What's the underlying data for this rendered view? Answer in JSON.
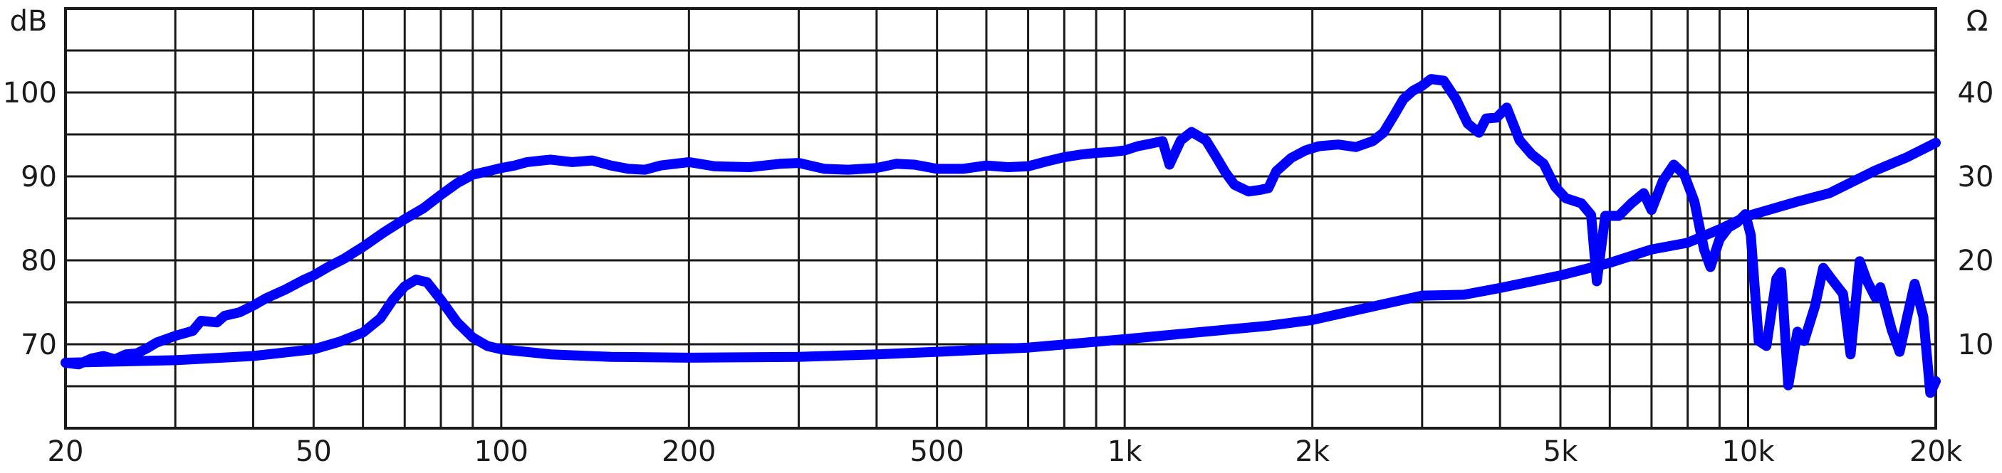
{
  "chart_data": {
    "type": "line",
    "title": "",
    "xlabel": "",
    "ylabel": "dB",
    "y2label": "Ω",
    "x_scale": "log",
    "xlim": [
      20,
      20000
    ],
    "ylim": [
      60,
      110
    ],
    "y2lim": [
      0,
      50
    ],
    "grid": true,
    "legend": "none",
    "line_color": "#0000ff",
    "grid_color": "#1a1a1a",
    "x_ticks": [
      {
        "value": 20,
        "label": "20"
      },
      {
        "value": 50,
        "label": "50"
      },
      {
        "value": 100,
        "label": "100"
      },
      {
        "value": 200,
        "label": "200"
      },
      {
        "value": 500,
        "label": "500"
      },
      {
        "value": 1000,
        "label": "1k"
      },
      {
        "value": 2000,
        "label": "2k"
      },
      {
        "value": 5000,
        "label": "5k"
      },
      {
        "value": 10000,
        "label": "10k"
      },
      {
        "value": 20000,
        "label": "20k"
      }
    ],
    "y_ticks": [
      {
        "value": 70,
        "label": "70"
      },
      {
        "value": 80,
        "label": "80"
      },
      {
        "value": 90,
        "label": "90"
      },
      {
        "value": 100,
        "label": "100"
      }
    ],
    "y2_ticks": [
      {
        "value": 10,
        "label": "10"
      },
      {
        "value": 20,
        "label": "20"
      },
      {
        "value": 30,
        "label": "30"
      },
      {
        "value": 40,
        "label": "40"
      }
    ],
    "series": [
      {
        "id": "spl",
        "axis": "left",
        "points": [
          [
            20,
            67.8
          ],
          [
            21,
            67.6
          ],
          [
            22,
            68.3
          ],
          [
            23,
            68.6
          ],
          [
            24,
            68.2
          ],
          [
            25,
            68.8
          ],
          [
            26,
            68.9
          ],
          [
            27,
            69.5
          ],
          [
            28,
            70.2
          ],
          [
            30,
            71.0
          ],
          [
            32,
            71.6
          ],
          [
            33,
            72.8
          ],
          [
            35,
            72.6
          ],
          [
            36,
            73.4
          ],
          [
            38,
            73.8
          ],
          [
            40,
            74.6
          ],
          [
            42,
            75.5
          ],
          [
            45,
            76.5
          ],
          [
            48,
            77.6
          ],
          [
            50,
            78.2
          ],
          [
            53,
            79.3
          ],
          [
            56,
            80.2
          ],
          [
            60,
            81.6
          ],
          [
            65,
            83.4
          ],
          [
            70,
            84.9
          ],
          [
            75,
            86.2
          ],
          [
            80,
            87.8
          ],
          [
            85,
            89.2
          ],
          [
            90,
            90.2
          ],
          [
            95,
            90.6
          ],
          [
            100,
            91.0
          ],
          [
            105,
            91.3
          ],
          [
            110,
            91.7
          ],
          [
            120,
            92.0
          ],
          [
            130,
            91.7
          ],
          [
            140,
            91.9
          ],
          [
            150,
            91.3
          ],
          [
            160,
            90.9
          ],
          [
            170,
            90.8
          ],
          [
            180,
            91.3
          ],
          [
            200,
            91.7
          ],
          [
            220,
            91.2
          ],
          [
            250,
            91.1
          ],
          [
            280,
            91.5
          ],
          [
            300,
            91.6
          ],
          [
            330,
            90.9
          ],
          [
            360,
            90.8
          ],
          [
            400,
            91.0
          ],
          [
            430,
            91.5
          ],
          [
            460,
            91.4
          ],
          [
            500,
            90.9
          ],
          [
            550,
            90.9
          ],
          [
            600,
            91.3
          ],
          [
            650,
            91.1
          ],
          [
            700,
            91.2
          ],
          [
            750,
            91.8
          ],
          [
            800,
            92.3
          ],
          [
            850,
            92.6
          ],
          [
            900,
            92.8
          ],
          [
            950,
            92.9
          ],
          [
            1000,
            93.1
          ],
          [
            1050,
            93.6
          ],
          [
            1100,
            93.9
          ],
          [
            1150,
            94.2
          ],
          [
            1180,
            91.4
          ],
          [
            1230,
            94.3
          ],
          [
            1280,
            95.3
          ],
          [
            1350,
            94.3
          ],
          [
            1400,
            92.4
          ],
          [
            1450,
            90.5
          ],
          [
            1500,
            89.0
          ],
          [
            1580,
            88.2
          ],
          [
            1650,
            88.4
          ],
          [
            1700,
            88.6
          ],
          [
            1750,
            90.6
          ],
          [
            1850,
            92.2
          ],
          [
            1950,
            93.1
          ],
          [
            2050,
            93.6
          ],
          [
            2200,
            93.8
          ],
          [
            2350,
            93.5
          ],
          [
            2500,
            94.2
          ],
          [
            2600,
            95.2
          ],
          [
            2700,
            97.2
          ],
          [
            2800,
            99.2
          ],
          [
            2900,
            100.2
          ],
          [
            3000,
            100.8
          ],
          [
            3100,
            101.6
          ],
          [
            3250,
            101.4
          ],
          [
            3400,
            99.2
          ],
          [
            3550,
            96.3
          ],
          [
            3700,
            95.2
          ],
          [
            3800,
            96.9
          ],
          [
            3950,
            97.0
          ],
          [
            4100,
            98.2
          ],
          [
            4300,
            94.3
          ],
          [
            4500,
            92.6
          ],
          [
            4700,
            91.5
          ],
          [
            4900,
            88.8
          ],
          [
            5100,
            87.4
          ],
          [
            5400,
            86.8
          ],
          [
            5600,
            85.4
          ],
          [
            5720,
            77.5
          ],
          [
            5900,
            85.3
          ],
          [
            6200,
            85.3
          ],
          [
            6500,
            86.8
          ],
          [
            6800,
            88.0
          ],
          [
            7000,
            86.0
          ],
          [
            7300,
            89.5
          ],
          [
            7600,
            91.4
          ],
          [
            7900,
            90.2
          ],
          [
            8200,
            87.0
          ],
          [
            8500,
            81.3
          ],
          [
            8700,
            79.2
          ],
          [
            9000,
            82.5
          ],
          [
            9300,
            83.9
          ],
          [
            9600,
            84.5
          ],
          [
            9900,
            85.5
          ],
          [
            10100,
            83.0
          ],
          [
            10400,
            70.4
          ],
          [
            10700,
            69.8
          ],
          [
            11100,
            77.8
          ],
          [
            11300,
            78.6
          ],
          [
            11600,
            65.1
          ],
          [
            12000,
            71.5
          ],
          [
            12300,
            70.4
          ],
          [
            12800,
            74.5
          ],
          [
            13200,
            79.1
          ],
          [
            13600,
            77.8
          ],
          [
            14200,
            76.0
          ],
          [
            14600,
            68.8
          ],
          [
            15100,
            79.9
          ],
          [
            15500,
            77.6
          ],
          [
            16000,
            75.6
          ],
          [
            16300,
            76.8
          ],
          [
            17000,
            71.7
          ],
          [
            17500,
            69.1
          ],
          [
            18000,
            73.3
          ],
          [
            18500,
            77.2
          ],
          [
            19100,
            73.3
          ],
          [
            19600,
            64.2
          ],
          [
            20000,
            65.6
          ]
        ]
      },
      {
        "id": "impedance",
        "axis": "right",
        "points": [
          [
            20,
            7.8
          ],
          [
            30,
            8.1
          ],
          [
            40,
            8.6
          ],
          [
            50,
            9.4
          ],
          [
            55,
            10.3
          ],
          [
            60,
            11.4
          ],
          [
            64,
            13.1
          ],
          [
            67,
            15.3
          ],
          [
            70,
            16.9
          ],
          [
            73,
            17.7
          ],
          [
            76,
            17.4
          ],
          [
            80,
            15.3
          ],
          [
            85,
            12.6
          ],
          [
            90,
            10.8
          ],
          [
            95,
            9.8
          ],
          [
            100,
            9.4
          ],
          [
            120,
            8.8
          ],
          [
            150,
            8.5
          ],
          [
            200,
            8.4
          ],
          [
            300,
            8.5
          ],
          [
            400,
            8.8
          ],
          [
            500,
            9.1
          ],
          [
            700,
            9.6
          ],
          [
            1000,
            10.6
          ],
          [
            1300,
            11.4
          ],
          [
            1700,
            12.2
          ],
          [
            2000,
            12.9
          ],
          [
            2500,
            14.5
          ],
          [
            3000,
            15.8
          ],
          [
            3500,
            15.9
          ],
          [
            4000,
            16.7
          ],
          [
            5000,
            18.2
          ],
          [
            6000,
            19.7
          ],
          [
            7000,
            21.3
          ],
          [
            8000,
            22.1
          ],
          [
            9000,
            23.7
          ],
          [
            10000,
            25.3
          ],
          [
            12000,
            27.0
          ],
          [
            13500,
            28.0
          ],
          [
            16000,
            30.7
          ],
          [
            18000,
            32.3
          ],
          [
            20000,
            34.0
          ]
        ]
      }
    ]
  }
}
